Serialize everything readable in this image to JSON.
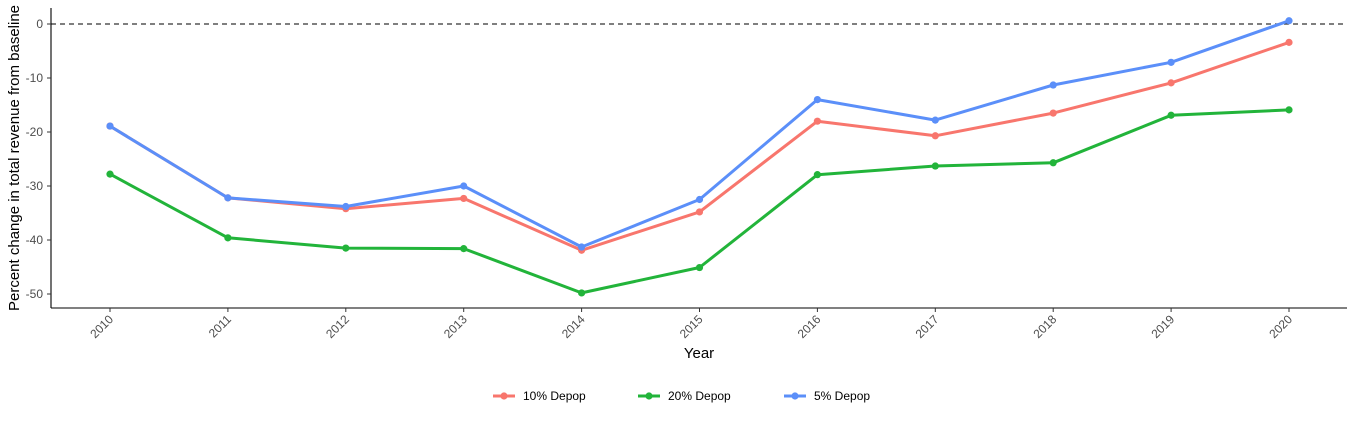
{
  "chart_data": {
    "type": "line",
    "title": "",
    "xlabel": "Year",
    "ylabel": "Percent change in total revenue from baseline",
    "x": [
      "2010",
      "2011",
      "2012",
      "2013",
      "2014",
      "2015",
      "2016",
      "2017",
      "2018",
      "2019",
      "2020"
    ],
    "ylim": [
      -52.5,
      3.2
    ],
    "yticks": [
      0,
      -10,
      -20,
      -30,
      -40,
      -50
    ],
    "reference_line": {
      "y": 0,
      "style": "dashed",
      "color": "#333333"
    },
    "grid": false,
    "legend_position": "bottom",
    "series": [
      {
        "name": "10% Depop",
        "color": "#F8766D",
        "values": [
          -18.9,
          -32.2,
          -34.2,
          -32.3,
          -41.9,
          -34.8,
          -18.0,
          -20.7,
          -16.5,
          -10.9,
          -3.4
        ]
      },
      {
        "name": "20% Depop",
        "color": "#22B43A",
        "values": [
          -27.8,
          -39.6,
          -41.5,
          -41.6,
          -49.8,
          -45.1,
          -27.9,
          -26.3,
          -25.7,
          -16.9,
          -15.9
        ]
      },
      {
        "name": "5% Depop",
        "color": "#5B8FF9",
        "values": [
          -18.9,
          -32.2,
          -33.8,
          -30.0,
          -41.3,
          -32.5,
          -14.0,
          -17.8,
          -11.3,
          -7.1,
          0.6
        ]
      }
    ]
  }
}
